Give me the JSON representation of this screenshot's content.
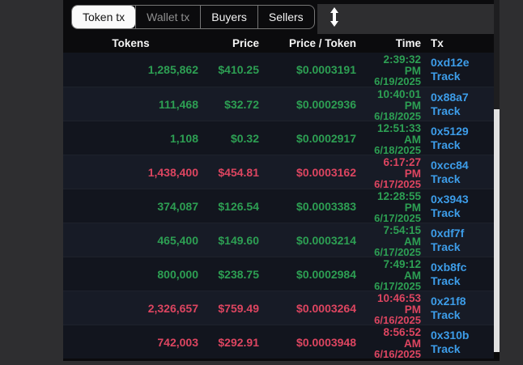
{
  "tabs": [
    {
      "label": "Token tx",
      "state": "active"
    },
    {
      "label": "Wallet tx",
      "state": "muted"
    },
    {
      "label": "Buyers",
      "state": "normal"
    },
    {
      "label": "Sellers",
      "state": "normal"
    }
  ],
  "toolbar": {
    "sort_icon": "up-down-arrow"
  },
  "table": {
    "columns": [
      "Tokens",
      "Price",
      "Price / Token",
      "Time",
      "Tx"
    ],
    "rows": [
      {
        "tokens": "1,285,862",
        "price": "$410.25",
        "price_per_token": "$0.0003191",
        "time": "2:39:32",
        "meridiem": "PM",
        "date": "6/19/2025",
        "tx_hash": "0xd12e",
        "tx_link": "Track",
        "trend": "up"
      },
      {
        "tokens": "111,468",
        "price": "$32.72",
        "price_per_token": "$0.0002936",
        "time": "10:40:01",
        "meridiem": "PM",
        "date": "6/18/2025",
        "tx_hash": "0x88a7",
        "tx_link": "Track",
        "trend": "up"
      },
      {
        "tokens": "1,108",
        "price": "$0.32",
        "price_per_token": "$0.0002917",
        "time": "12:51:33",
        "meridiem": "AM",
        "date": "6/18/2025",
        "tx_hash": "0x5129",
        "tx_link": "Track",
        "trend": "up"
      },
      {
        "tokens": "1,438,400",
        "price": "$454.81",
        "price_per_token": "$0.0003162",
        "time": "6:17:27",
        "meridiem": "PM",
        "date": "6/17/2025",
        "tx_hash": "0xcc84",
        "tx_link": "Track",
        "trend": "down"
      },
      {
        "tokens": "374,087",
        "price": "$126.54",
        "price_per_token": "$0.0003383",
        "time": "12:28:55",
        "meridiem": "PM",
        "date": "6/17/2025",
        "tx_hash": "0x3943",
        "tx_link": "Track",
        "trend": "up"
      },
      {
        "tokens": "465,400",
        "price": "$149.60",
        "price_per_token": "$0.0003214",
        "time": "7:54:15",
        "meridiem": "AM",
        "date": "6/17/2025",
        "tx_hash": "0xdf7f",
        "tx_link": "Track",
        "trend": "up"
      },
      {
        "tokens": "800,000",
        "price": "$238.75",
        "price_per_token": "$0.0002984",
        "time": "7:49:12",
        "meridiem": "AM",
        "date": "6/17/2025",
        "tx_hash": "0xb8fc",
        "tx_link": "Track",
        "trend": "up"
      },
      {
        "tokens": "2,326,657",
        "price": "$759.49",
        "price_per_token": "$0.0003264",
        "time": "10:46:53",
        "meridiem": "PM",
        "date": "6/16/2025",
        "tx_hash": "0x21f8",
        "tx_link": "Track",
        "trend": "down"
      },
      {
        "tokens": "742,003",
        "price": "$292.91",
        "price_per_token": "$0.0003948",
        "time": "8:56:52",
        "meridiem": "AM",
        "date": "6/16/2025",
        "tx_hash": "0x310b",
        "tx_link": "Track",
        "trend": "down"
      }
    ]
  },
  "colors": {
    "up": "#2d9f53",
    "down": "#dd4560",
    "link": "#3d9de9",
    "panel_bg": "#0b0b0d",
    "page_bg": "#2e2e30",
    "row_odd": "#12151e",
    "row_even": "#171b26"
  }
}
